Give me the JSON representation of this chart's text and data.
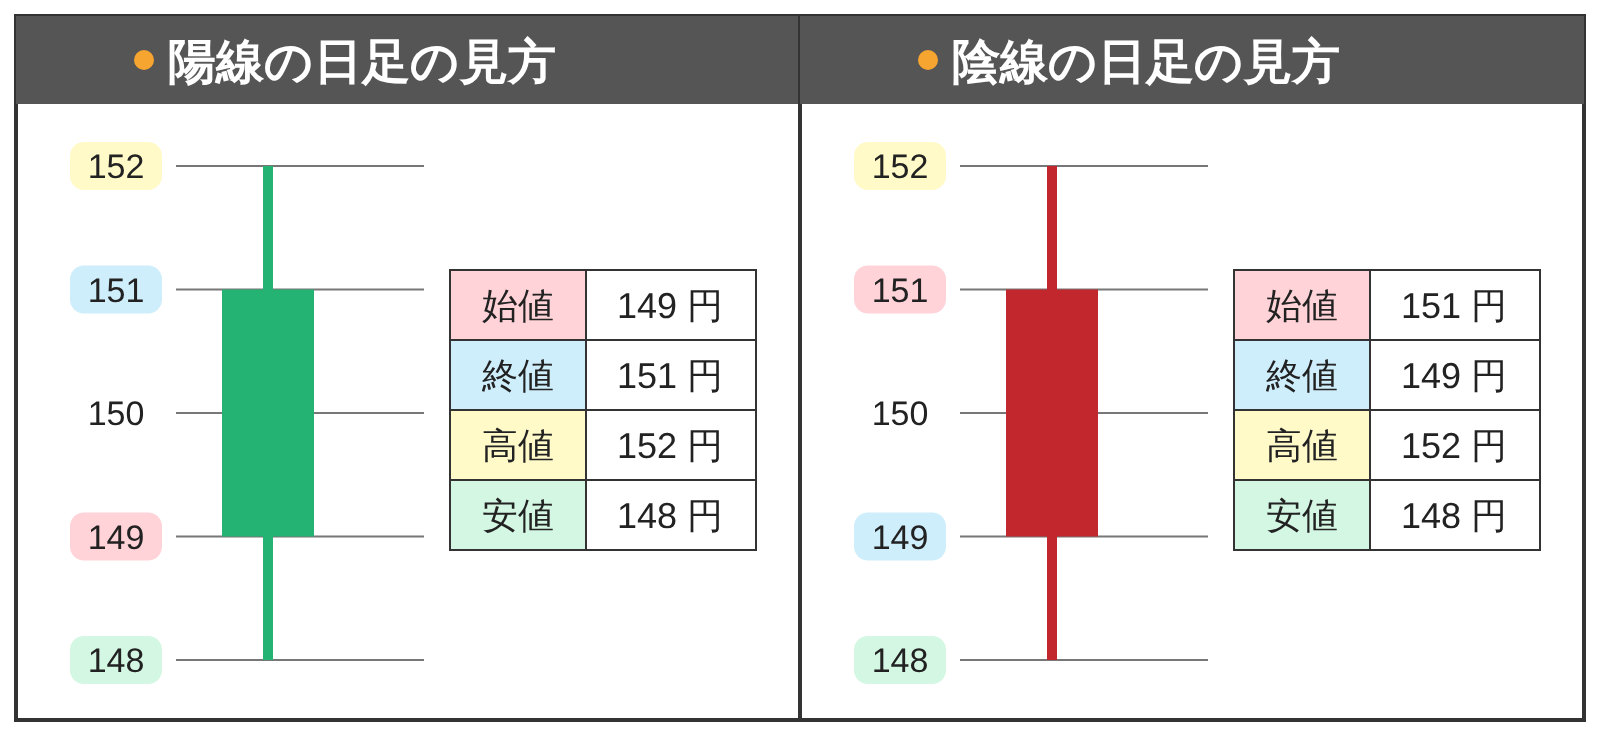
{
  "chart_data": [
    {
      "type": "candlestick",
      "title": "陽線の日足の見方",
      "categories": [
        null
      ],
      "ohlc": [
        [
          149,
          152,
          148,
          151
        ]
      ],
      "colors": [
        "#25b373"
      ],
      "ylim": [
        148,
        152
      ],
      "yticks": [
        148,
        149,
        150,
        151,
        152
      ],
      "grid": "y",
      "annotations": [
        "始値",
        "149 円",
        "終値",
        "151 円",
        "高値",
        "152 円",
        "安値",
        "148 円"
      ]
    },
    {
      "type": "candlestick",
      "title": "陰線の日足の見方",
      "categories": [
        null
      ],
      "ohlc": [
        [
          151,
          152,
          148,
          149
        ]
      ],
      "colors": [
        "#c1272d"
      ],
      "ylim": [
        148,
        152
      ],
      "yticks": [
        148,
        149,
        150,
        151,
        152
      ],
      "grid": "y",
      "annotations": [
        "始値",
        "151 円",
        "終値",
        "149 円",
        "高値",
        "152 円",
        "安値",
        "148 円"
      ]
    }
  ]
}
